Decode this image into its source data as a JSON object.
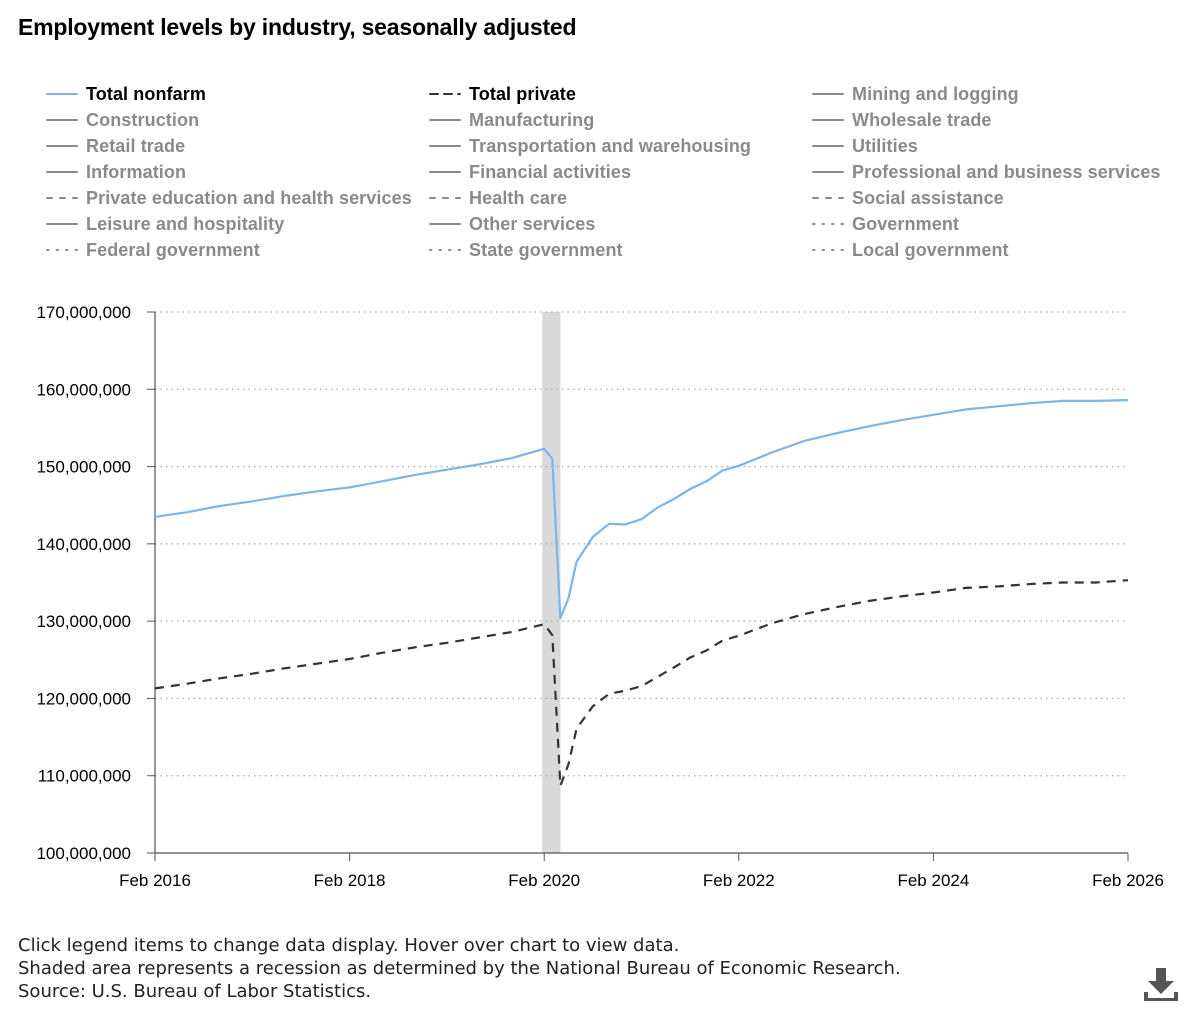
{
  "title": "Employment levels by industry, seasonally adjusted",
  "legend": [
    {
      "label": "Total nonfarm",
      "style": "solid",
      "color": "#7cb5ec",
      "active": true
    },
    {
      "label": "Total private",
      "style": "dashed",
      "color": "#333333",
      "active": true
    },
    {
      "label": "Mining and logging",
      "style": "solid",
      "color": "#8a8a8a",
      "active": false
    },
    {
      "label": "Construction",
      "style": "solid",
      "color": "#8a8a8a",
      "active": false
    },
    {
      "label": "Manufacturing",
      "style": "solid",
      "color": "#8a8a8a",
      "active": false
    },
    {
      "label": "Wholesale trade",
      "style": "solid",
      "color": "#8a8a8a",
      "active": false
    },
    {
      "label": "Retail trade",
      "style": "solid",
      "color": "#8a8a8a",
      "active": false
    },
    {
      "label": "Transportation and warehousing",
      "style": "solid",
      "color": "#8a8a8a",
      "active": false
    },
    {
      "label": "Utilities",
      "style": "solid",
      "color": "#8a8a8a",
      "active": false
    },
    {
      "label": "Information",
      "style": "solid",
      "color": "#8a8a8a",
      "active": false
    },
    {
      "label": "Financial activities",
      "style": "solid",
      "color": "#8a8a8a",
      "active": false
    },
    {
      "label": "Professional and business services",
      "style": "solid",
      "color": "#8a8a8a",
      "active": false
    },
    {
      "label": "Private education and health services",
      "style": "dashdot",
      "color": "#8a8a8a",
      "active": false
    },
    {
      "label": "Health care",
      "style": "dashdot",
      "color": "#8a8a8a",
      "active": false
    },
    {
      "label": "Social assistance",
      "style": "dashdot",
      "color": "#8a8a8a",
      "active": false
    },
    {
      "label": "Leisure and hospitality",
      "style": "solid",
      "color": "#8a8a8a",
      "active": false
    },
    {
      "label": "Other services",
      "style": "solid",
      "color": "#8a8a8a",
      "active": false
    },
    {
      "label": "Government",
      "style": "dotted",
      "color": "#8a8a8a",
      "active": false
    },
    {
      "label": "Federal government",
      "style": "dotted",
      "color": "#8a8a8a",
      "active": false
    },
    {
      "label": "State government",
      "style": "dotted",
      "color": "#8a8a8a",
      "active": false
    },
    {
      "label": "Local government",
      "style": "dotted",
      "color": "#8a8a8a",
      "active": false
    }
  ],
  "chart_data": {
    "type": "line",
    "x_ticks": [
      "Feb 2016",
      "Feb 2018",
      "Feb 2020",
      "Feb 2022",
      "Feb 2024",
      "Feb 2026"
    ],
    "y_ticks": [
      "100,000,000",
      "110,000,000",
      "120,000,000",
      "130,000,000",
      "140,000,000",
      "150,000,000",
      "160,000,000",
      "170,000,000"
    ],
    "ylim": [
      100000000,
      170000000
    ],
    "xlim": [
      "2016-02",
      "2026-02"
    ],
    "grid": "horizontal dotted",
    "recession": {
      "start": "2020-02",
      "end": "2020-04"
    },
    "series": [
      {
        "name": "Total nonfarm",
        "style": "solid",
        "color": "#7cb5ec",
        "points": [
          [
            "2016-02",
            143500000
          ],
          [
            "2016-06",
            144100000
          ],
          [
            "2016-10",
            144900000
          ],
          [
            "2017-02",
            145500000
          ],
          [
            "2017-06",
            146200000
          ],
          [
            "2017-10",
            146800000
          ],
          [
            "2018-02",
            147300000
          ],
          [
            "2018-06",
            148100000
          ],
          [
            "2018-10",
            148900000
          ],
          [
            "2019-02",
            149600000
          ],
          [
            "2019-06",
            150300000
          ],
          [
            "2019-10",
            151100000
          ],
          [
            "2020-02",
            152300000
          ],
          [
            "2020-03",
            151000000
          ],
          [
            "2020-04",
            130400000
          ],
          [
            "2020-05",
            133000000
          ],
          [
            "2020-06",
            137700000
          ],
          [
            "2020-08",
            140900000
          ],
          [
            "2020-10",
            142600000
          ],
          [
            "2020-12",
            142500000
          ],
          [
            "2021-02",
            143200000
          ],
          [
            "2021-04",
            144700000
          ],
          [
            "2021-06",
            145800000
          ],
          [
            "2021-08",
            147100000
          ],
          [
            "2021-10",
            148100000
          ],
          [
            "2021-12",
            149500000
          ],
          [
            "2022-02",
            150100000
          ],
          [
            "2022-06",
            151800000
          ],
          [
            "2022-10",
            153300000
          ],
          [
            "2023-02",
            154300000
          ],
          [
            "2023-06",
            155200000
          ],
          [
            "2023-10",
            156000000
          ],
          [
            "2024-02",
            156700000
          ],
          [
            "2024-06",
            157400000
          ],
          [
            "2024-10",
            157800000
          ],
          [
            "2025-02",
            158200000
          ],
          [
            "2025-06",
            158500000
          ],
          [
            "2025-10",
            158500000
          ],
          [
            "2026-02",
            158600000
          ]
        ]
      },
      {
        "name": "Total private",
        "style": "dashed",
        "color": "#333333",
        "points": [
          [
            "2016-02",
            121300000
          ],
          [
            "2016-06",
            121900000
          ],
          [
            "2016-10",
            122600000
          ],
          [
            "2017-02",
            123200000
          ],
          [
            "2017-06",
            123900000
          ],
          [
            "2017-10",
            124500000
          ],
          [
            "2018-02",
            125100000
          ],
          [
            "2018-06",
            125900000
          ],
          [
            "2018-10",
            126600000
          ],
          [
            "2019-02",
            127200000
          ],
          [
            "2019-06",
            127900000
          ],
          [
            "2019-10",
            128600000
          ],
          [
            "2020-02",
            129600000
          ],
          [
            "2020-03",
            128200000
          ],
          [
            "2020-04",
            108700000
          ],
          [
            "2020-05",
            111500000
          ],
          [
            "2020-06",
            116100000
          ],
          [
            "2020-08",
            119000000
          ],
          [
            "2020-10",
            120600000
          ],
          [
            "2020-12",
            121000000
          ],
          [
            "2021-02",
            121600000
          ],
          [
            "2021-04",
            122800000
          ],
          [
            "2021-06",
            124000000
          ],
          [
            "2021-08",
            125300000
          ],
          [
            "2021-10",
            126200000
          ],
          [
            "2021-12",
            127500000
          ],
          [
            "2022-02",
            128100000
          ],
          [
            "2022-06",
            129700000
          ],
          [
            "2022-10",
            130900000
          ],
          [
            "2023-02",
            131800000
          ],
          [
            "2023-06",
            132600000
          ],
          [
            "2023-10",
            133200000
          ],
          [
            "2024-02",
            133700000
          ],
          [
            "2024-06",
            134300000
          ],
          [
            "2024-10",
            134500000
          ],
          [
            "2025-02",
            134800000
          ],
          [
            "2025-06",
            135000000
          ],
          [
            "2025-10",
            135000000
          ],
          [
            "2026-02",
            135300000
          ]
        ]
      }
    ]
  },
  "notes": [
    "Click legend items to change data display. Hover over chart to view data.",
    "Shaded area represents a recession as determined by the National Bureau of Economic Research.",
    "Source: U.S. Bureau of Labor Statistics."
  ],
  "download_icon": "download-icon"
}
